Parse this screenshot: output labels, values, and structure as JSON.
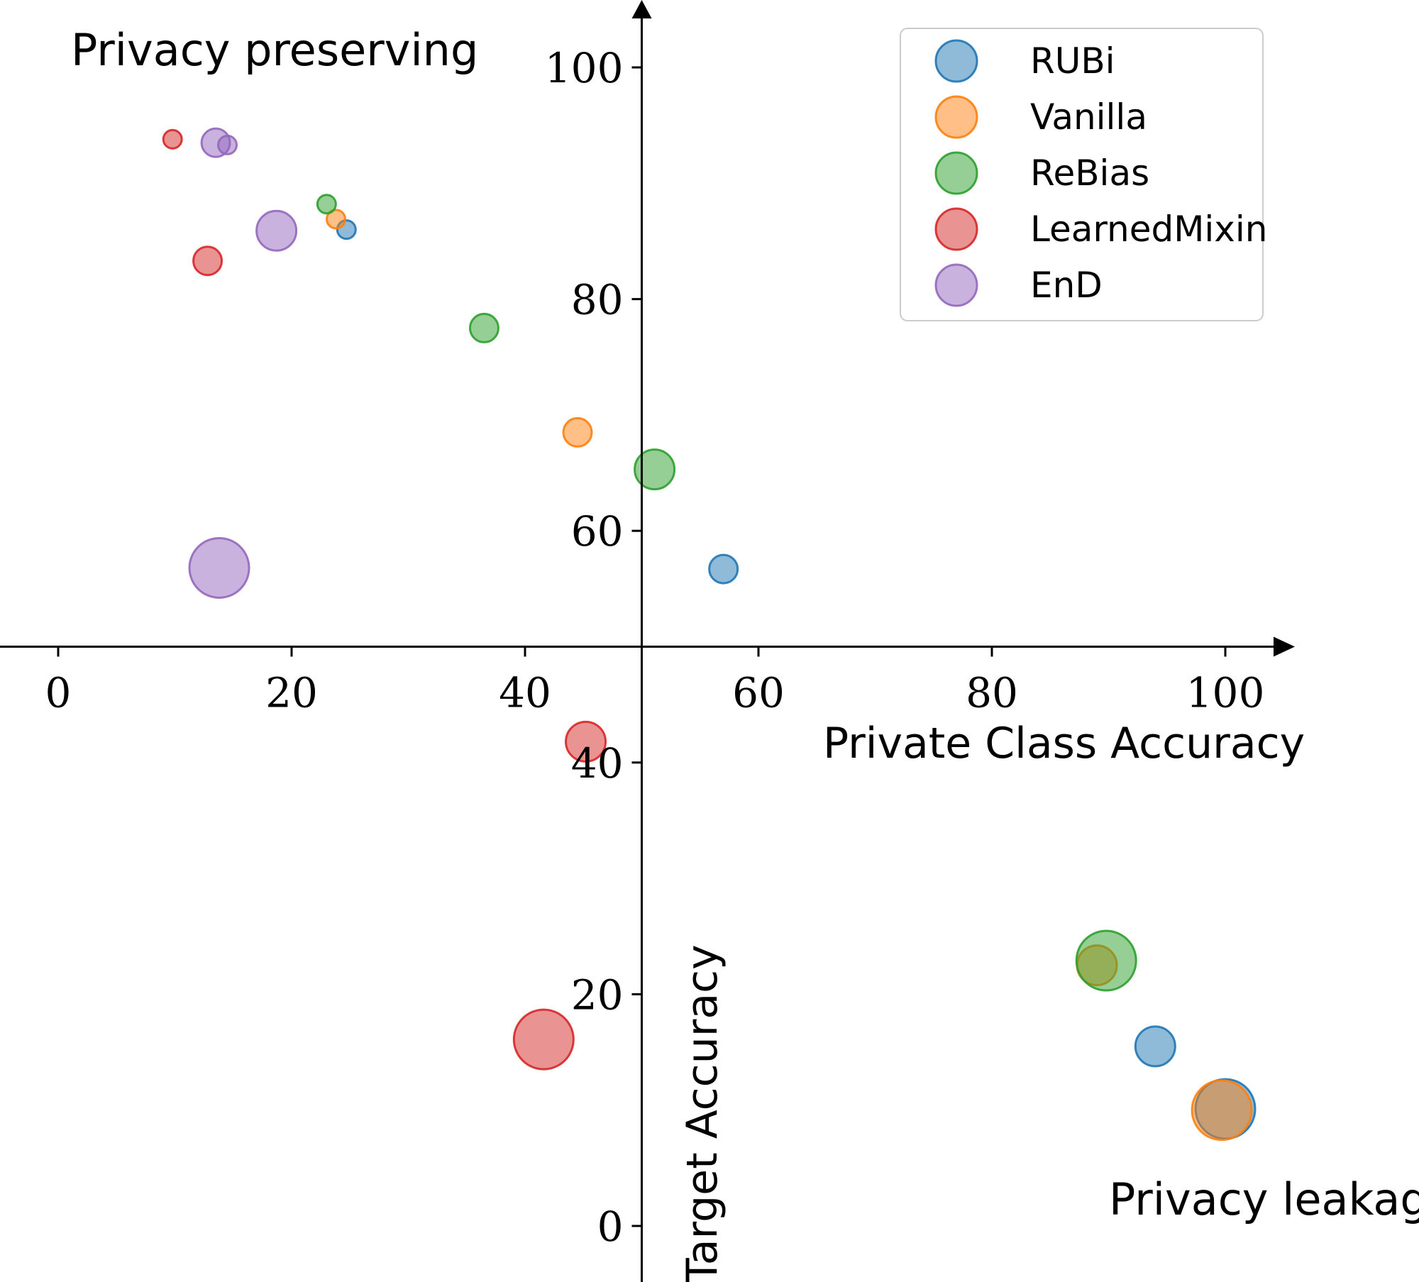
{
  "chart_data": {
    "type": "scatter",
    "xlabel": "Private Class Accuracy",
    "ylabel": "Target Accuracy",
    "annotations": [
      "Privacy preserving",
      "Privacy leakage"
    ],
    "x_ticks": [
      0,
      20,
      40,
      60,
      80,
      100
    ],
    "y_ticks": [
      0,
      20,
      40,
      60,
      80,
      100
    ],
    "xlim": [
      -5,
      105
    ],
    "ylim": [
      -5,
      105
    ],
    "x_axis_at_y": 50,
    "y_axis_at_x": 50,
    "grid": false,
    "legend_position": "top-right",
    "series": [
      {
        "name": "RUBi",
        "color": "#1f77b4",
        "points": [
          {
            "x": 24.7,
            "y": 86,
            "r": 13
          },
          {
            "x": 57,
            "y": 56.7,
            "r": 20
          },
          {
            "x": 94,
            "y": 15.5,
            "r": 28
          },
          {
            "x": 100,
            "y": 10.1,
            "r": 42
          }
        ]
      },
      {
        "name": "Vanilla",
        "color": "#ff7f0e",
        "points": [
          {
            "x": 23.8,
            "y": 86.9,
            "r": 13
          },
          {
            "x": 44.5,
            "y": 68.5,
            "r": 20
          },
          {
            "x": 89,
            "y": 22.5,
            "r": 28
          },
          {
            "x": 99.7,
            "y": 10,
            "r": 42
          }
        ]
      },
      {
        "name": "ReBias",
        "color": "#2ca02c",
        "points": [
          {
            "x": 23,
            "y": 88.2,
            "r": 13
          },
          {
            "x": 36.5,
            "y": 77.5,
            "r": 20
          },
          {
            "x": 51.1,
            "y": 65.3,
            "r": 28
          },
          {
            "x": 89.8,
            "y": 22.9,
            "r": 42
          }
        ]
      },
      {
        "name": "LearnedMixin",
        "color": "#d62728",
        "points": [
          {
            "x": 9.8,
            "y": 93.8,
            "r": 13
          },
          {
            "x": 12.8,
            "y": 83.3,
            "r": 20
          },
          {
            "x": 45.2,
            "y": 41.8,
            "r": 28
          },
          {
            "x": 41.6,
            "y": 16.1,
            "r": 42
          }
        ]
      },
      {
        "name": "EnD",
        "color": "#9467bd",
        "points": [
          {
            "x": 14.5,
            "y": 93.3,
            "r": 13
          },
          {
            "x": 13.5,
            "y": 93.5,
            "r": 20
          },
          {
            "x": 18.7,
            "y": 85.9,
            "r": 28
          },
          {
            "x": 13.8,
            "y": 56.8,
            "r": 42
          }
        ]
      }
    ]
  }
}
